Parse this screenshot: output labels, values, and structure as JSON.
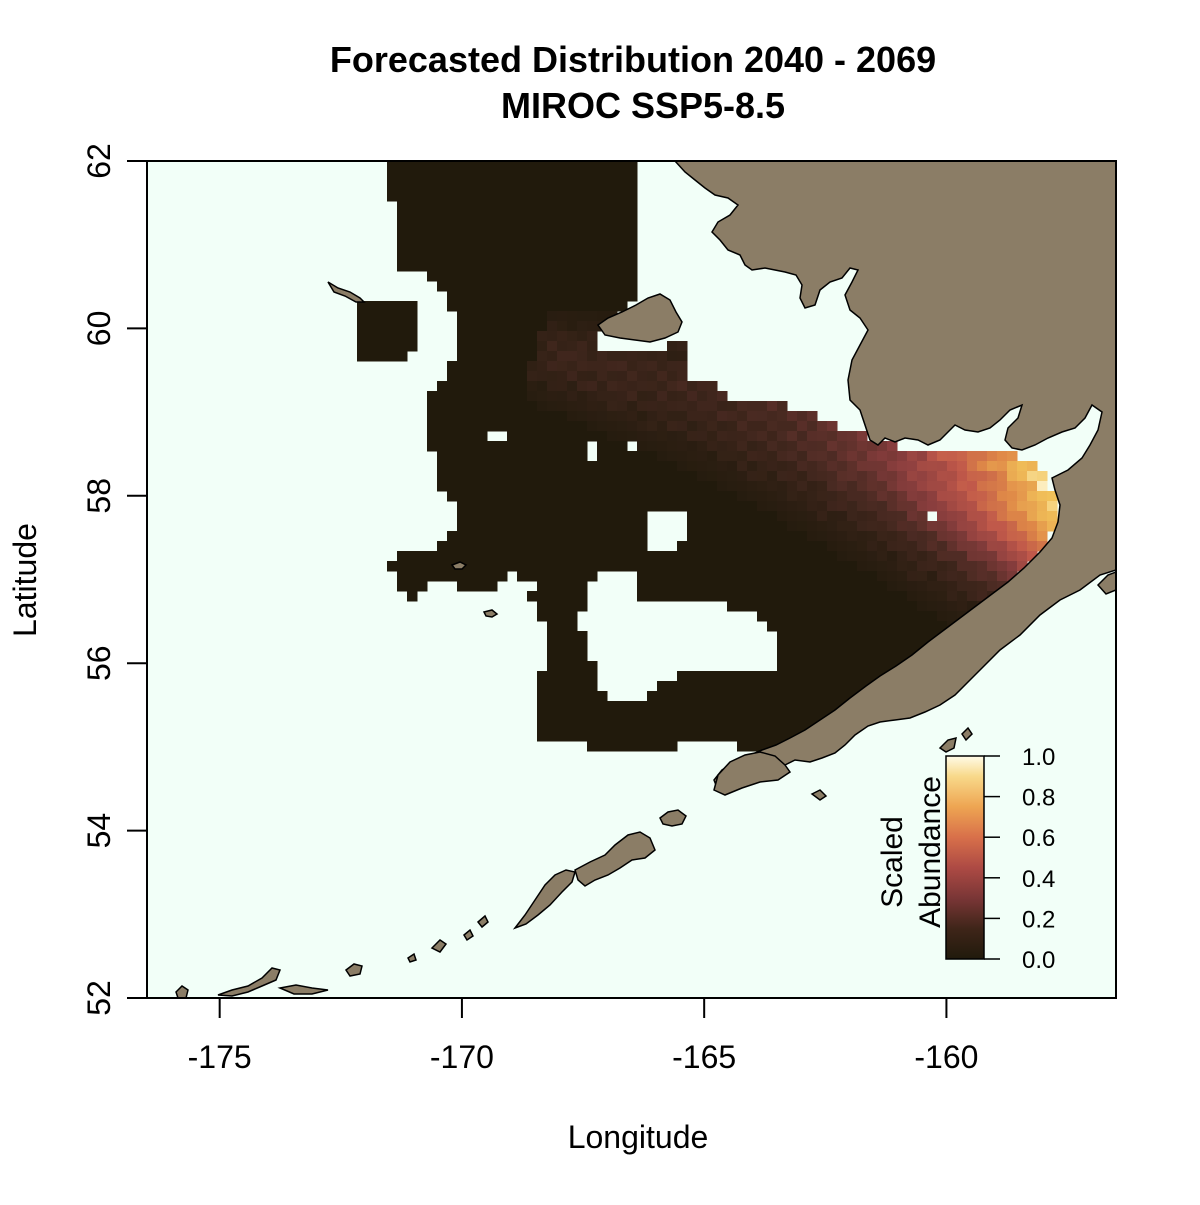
{
  "chart_data": {
    "type": "heatmap",
    "title": "Forecasted Distribution 2040 - 2069",
    "subtitle": "MIROC SSP5-8.5",
    "xlabel": "Longitude",
    "ylabel": "Latitude",
    "xlim": [
      -176.5,
      -156.5
    ],
    "ylim": [
      52,
      62
    ],
    "x_ticks": [
      -175,
      -170,
      -165,
      -160
    ],
    "y_ticks": [
      52,
      54,
      56,
      58,
      60,
      62
    ],
    "x_tick_labels": [
      "-175",
      "-170",
      "-165",
      "-160"
    ],
    "y_tick_labels": [
      "52",
      "54",
      "56",
      "58",
      "60",
      "62"
    ],
    "colors": {
      "ocean": "#f2fff8",
      "land": "#8b7d66",
      "zero_abundance": "#211a0c",
      "ramp": [
        "#211a0c",
        "#4a2a22",
        "#8a3e3e",
        "#c0584a",
        "#e08a48",
        "#f2c45a",
        "#fffbe0"
      ]
    },
    "legend": {
      "title_line1": "Scaled",
      "title_line2": "Abundance",
      "placement": "bottom-right",
      "ticks": [
        0.0,
        0.2,
        0.4,
        0.6,
        0.8,
        1.0
      ],
      "tick_labels": [
        "0.0",
        "0.2",
        "0.4",
        "0.6",
        "0.8",
        "1.0"
      ]
    }
  }
}
